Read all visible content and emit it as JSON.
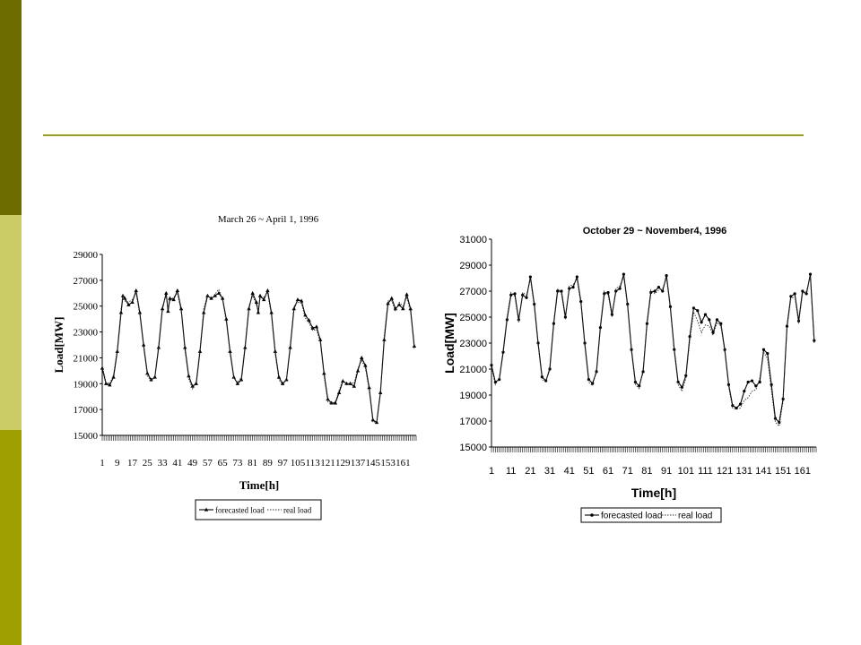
{
  "slide": {
    "colors": {
      "bar_top": "#6b6b00",
      "bar_middle": "#cccc66",
      "bar_bottom": "#9e9e00",
      "rule": "#9e9e1a"
    }
  },
  "chart_data": [
    {
      "type": "line",
      "title": "March 26 ~ April 1, 1996",
      "xlabel": "Time[h]",
      "ylabel": "Load[MW]",
      "ylim": [
        15000,
        29000
      ],
      "xlim": [
        1,
        168
      ],
      "yticks": [
        "15000",
        "17000",
        "19000",
        "21000",
        "23000",
        "25000",
        "27000",
        "29000"
      ],
      "xticks": [
        "1",
        "9",
        "17",
        "25",
        "33",
        "41",
        "49",
        "57",
        "65",
        "73",
        "81",
        "89",
        "97",
        "105",
        "113",
        "121",
        "129",
        "137",
        "145",
        "153",
        "161"
      ],
      "xtick_values": [
        1,
        9,
        17,
        25,
        33,
        41,
        49,
        57,
        65,
        73,
        81,
        89,
        97,
        105,
        113,
        121,
        129,
        137,
        145,
        153,
        161
      ],
      "legend": [
        "forecasted load",
        "real load"
      ],
      "legend_position": "bottom",
      "series": [
        {
          "name": "forecasted load",
          "style": "solid-triangle",
          "x": [
            1,
            3,
            5,
            7,
            9,
            11,
            12,
            13,
            15,
            17,
            19,
            21,
            23,
            25,
            27,
            29,
            31,
            33,
            35,
            36,
            37,
            39,
            41,
            43,
            45,
            47,
            49,
            51,
            53,
            55,
            57,
            59,
            61,
            63,
            65,
            67,
            69,
            71,
            73,
            75,
            77,
            79,
            81,
            83,
            84,
            85,
            87,
            89,
            91,
            93,
            95,
            97,
            99,
            101,
            103,
            105,
            107,
            109,
            111,
            113,
            115,
            117,
            119,
            121,
            123,
            125,
            127,
            129,
            131,
            133,
            135,
            137,
            139,
            141,
            143,
            145,
            147,
            149,
            151,
            153,
            155,
            157,
            159,
            161,
            163,
            165,
            167
          ],
          "y": [
            20200,
            19000,
            18900,
            19500,
            21500,
            24500,
            25800,
            25600,
            25100,
            25300,
            26200,
            24500,
            22000,
            19800,
            19300,
            19500,
            21800,
            24800,
            26000,
            24600,
            25600,
            25500,
            26200,
            24800,
            21800,
            19600,
            18800,
            19000,
            21500,
            24500,
            25800,
            25600,
            25800,
            26000,
            25600,
            24000,
            21500,
            19500,
            19000,
            19300,
            21800,
            24800,
            26000,
            25300,
            24500,
            25800,
            25500,
            26200,
            24500,
            21500,
            19500,
            19000,
            19300,
            21800,
            24800,
            25500,
            25400,
            24300,
            23900,
            23300,
            23400,
            22400,
            19800,
            17800,
            17500,
            17500,
            18300,
            19200,
            19000,
            19000,
            18800,
            20000,
            21000,
            20400,
            18700,
            16200,
            16000,
            18300,
            22400,
            25200,
            25600,
            24800,
            25100,
            24800,
            25900,
            24800,
            21900
          ]
        },
        {
          "name": "real load",
          "style": "dotted",
          "x": [
            1,
            3,
            5,
            7,
            9,
            11,
            12,
            13,
            15,
            17,
            19,
            21,
            23,
            25,
            27,
            29,
            31,
            33,
            35,
            36,
            37,
            39,
            41,
            43,
            45,
            47,
            49,
            51,
            53,
            55,
            57,
            59,
            61,
            63,
            65,
            67,
            69,
            71,
            73,
            75,
            77,
            79,
            81,
            83,
            84,
            85,
            87,
            89,
            91,
            93,
            95,
            97,
            99,
            101,
            103,
            105,
            107,
            109,
            111,
            113,
            115,
            117,
            119,
            121,
            123,
            125,
            127,
            129,
            131,
            133,
            135,
            137,
            139,
            141,
            143,
            145,
            147,
            149,
            151,
            153,
            155,
            157,
            159,
            161,
            163,
            165,
            167
          ],
          "y": [
            20400,
            19100,
            19000,
            19700,
            21700,
            24800,
            25900,
            25400,
            25300,
            25500,
            26000,
            24300,
            21800,
            19600,
            19200,
            19600,
            22000,
            25000,
            25800,
            24800,
            25400,
            25700,
            26000,
            24600,
            21600,
            19400,
            18600,
            19200,
            21700,
            24800,
            25900,
            25500,
            25900,
            26300,
            25500,
            23800,
            21300,
            19400,
            19100,
            19500,
            22000,
            25000,
            25800,
            25100,
            24700,
            25600,
            25700,
            26000,
            24300,
            21300,
            19300,
            18900,
            19400,
            22000,
            25000,
            25300,
            25200,
            24100,
            23700,
            23100,
            23200,
            22200,
            19600,
            17600,
            17400,
            17600,
            18500,
            19300,
            18900,
            19100,
            19000,
            20200,
            20800,
            20200,
            18500,
            16000,
            16100,
            18500,
            22700,
            25400,
            25400,
            24600,
            25300,
            25000,
            25700,
            24600,
            21700
          ]
        }
      ]
    },
    {
      "type": "line",
      "title": "October 29 ~ November4, 1996",
      "xlabel": "Time[h]",
      "ylabel": "Load[MW]",
      "ylim": [
        15000,
        31000
      ],
      "xlim": [
        1,
        168
      ],
      "yticks": [
        "15000",
        "17000",
        "19000",
        "21000",
        "23000",
        "25000",
        "27000",
        "29000",
        "31000"
      ],
      "xticks": [
        "1",
        "11",
        "21",
        "31",
        "41",
        "51",
        "61",
        "71",
        "81",
        "91",
        "101",
        "111",
        "121",
        "131",
        "141",
        "151",
        "161"
      ],
      "xtick_values": [
        1,
        11,
        21,
        31,
        41,
        51,
        61,
        71,
        81,
        91,
        101,
        111,
        121,
        131,
        141,
        151,
        161
      ],
      "legend": [
        "forecasted load",
        "real load"
      ],
      "legend_position": "bottom",
      "series": [
        {
          "name": "forecasted load",
          "style": "solid-circle",
          "x": [
            1,
            3,
            5,
            7,
            9,
            11,
            13,
            15,
            17,
            19,
            21,
            23,
            25,
            27,
            29,
            31,
            33,
            35,
            37,
            39,
            41,
            43,
            45,
            47,
            49,
            51,
            53,
            55,
            57,
            59,
            61,
            63,
            65,
            67,
            69,
            71,
            73,
            75,
            77,
            79,
            81,
            83,
            85,
            87,
            89,
            91,
            93,
            95,
            97,
            99,
            101,
            103,
            105,
            107,
            109,
            111,
            113,
            115,
            117,
            119,
            121,
            123,
            125,
            127,
            129,
            131,
            133,
            135,
            137,
            139,
            141,
            143,
            145,
            147,
            149,
            151,
            153,
            155,
            157,
            159,
            161,
            163,
            165,
            167
          ],
          "y": [
            21300,
            20000,
            20200,
            22300,
            24800,
            26700,
            26800,
            24800,
            26700,
            26500,
            28100,
            26000,
            23000,
            20400,
            20100,
            21000,
            24500,
            27000,
            27000,
            25000,
            27200,
            27300,
            28100,
            26200,
            23000,
            20200,
            19900,
            20800,
            24200,
            26800,
            26900,
            25200,
            27000,
            27200,
            28300,
            26000,
            22500,
            20000,
            19700,
            20800,
            24500,
            26900,
            27000,
            27300,
            27000,
            28200,
            25800,
            22500,
            20000,
            19600,
            20500,
            23500,
            25700,
            25500,
            24600,
            25200,
            24800,
            23800,
            24800,
            24500,
            22500,
            19800,
            18200,
            18000,
            18300,
            19300,
            20000,
            20100,
            19700,
            20000,
            22500,
            22200,
            19800,
            17200,
            16900,
            18700,
            24300,
            26600,
            26800,
            24700,
            27000,
            26800,
            28300,
            23200
          ]
        },
        {
          "name": "real load",
          "style": "dotted",
          "x": [
            1,
            3,
            5,
            7,
            9,
            11,
            13,
            15,
            17,
            19,
            21,
            23,
            25,
            27,
            29,
            31,
            33,
            35,
            37,
            39,
            41,
            43,
            45,
            47,
            49,
            51,
            53,
            55,
            57,
            59,
            61,
            63,
            65,
            67,
            69,
            71,
            73,
            75,
            77,
            79,
            81,
            83,
            85,
            87,
            89,
            91,
            93,
            95,
            97,
            99,
            101,
            103,
            105,
            107,
            109,
            111,
            113,
            115,
            117,
            119,
            121,
            123,
            125,
            127,
            129,
            131,
            133,
            135,
            137,
            139,
            141,
            143,
            145,
            147,
            149,
            151,
            153,
            155,
            157,
            159,
            161,
            163,
            165,
            167
          ],
          "y": [
            21100,
            19800,
            20300,
            22500,
            25000,
            26900,
            26600,
            24600,
            26900,
            26700,
            27900,
            25800,
            22800,
            20200,
            20000,
            21200,
            24700,
            27200,
            26800,
            24800,
            27400,
            27500,
            27900,
            26000,
            22800,
            20000,
            19700,
            21000,
            24400,
            27000,
            26700,
            25000,
            27200,
            27400,
            28100,
            25800,
            22300,
            19800,
            19500,
            21000,
            24700,
            27100,
            26800,
            27100,
            27200,
            28000,
            25600,
            22300,
            19800,
            19300,
            20300,
            23200,
            25400,
            24700,
            23800,
            24400,
            24300,
            23600,
            24600,
            24300,
            22300,
            19600,
            18000,
            17900,
            18000,
            18600,
            18800,
            19300,
            19400,
            20300,
            22300,
            21800,
            19400,
            16900,
            16600,
            18500,
            24100,
            26400,
            26600,
            24500,
            26800,
            27000,
            28100,
            23000
          ]
        }
      ]
    }
  ]
}
